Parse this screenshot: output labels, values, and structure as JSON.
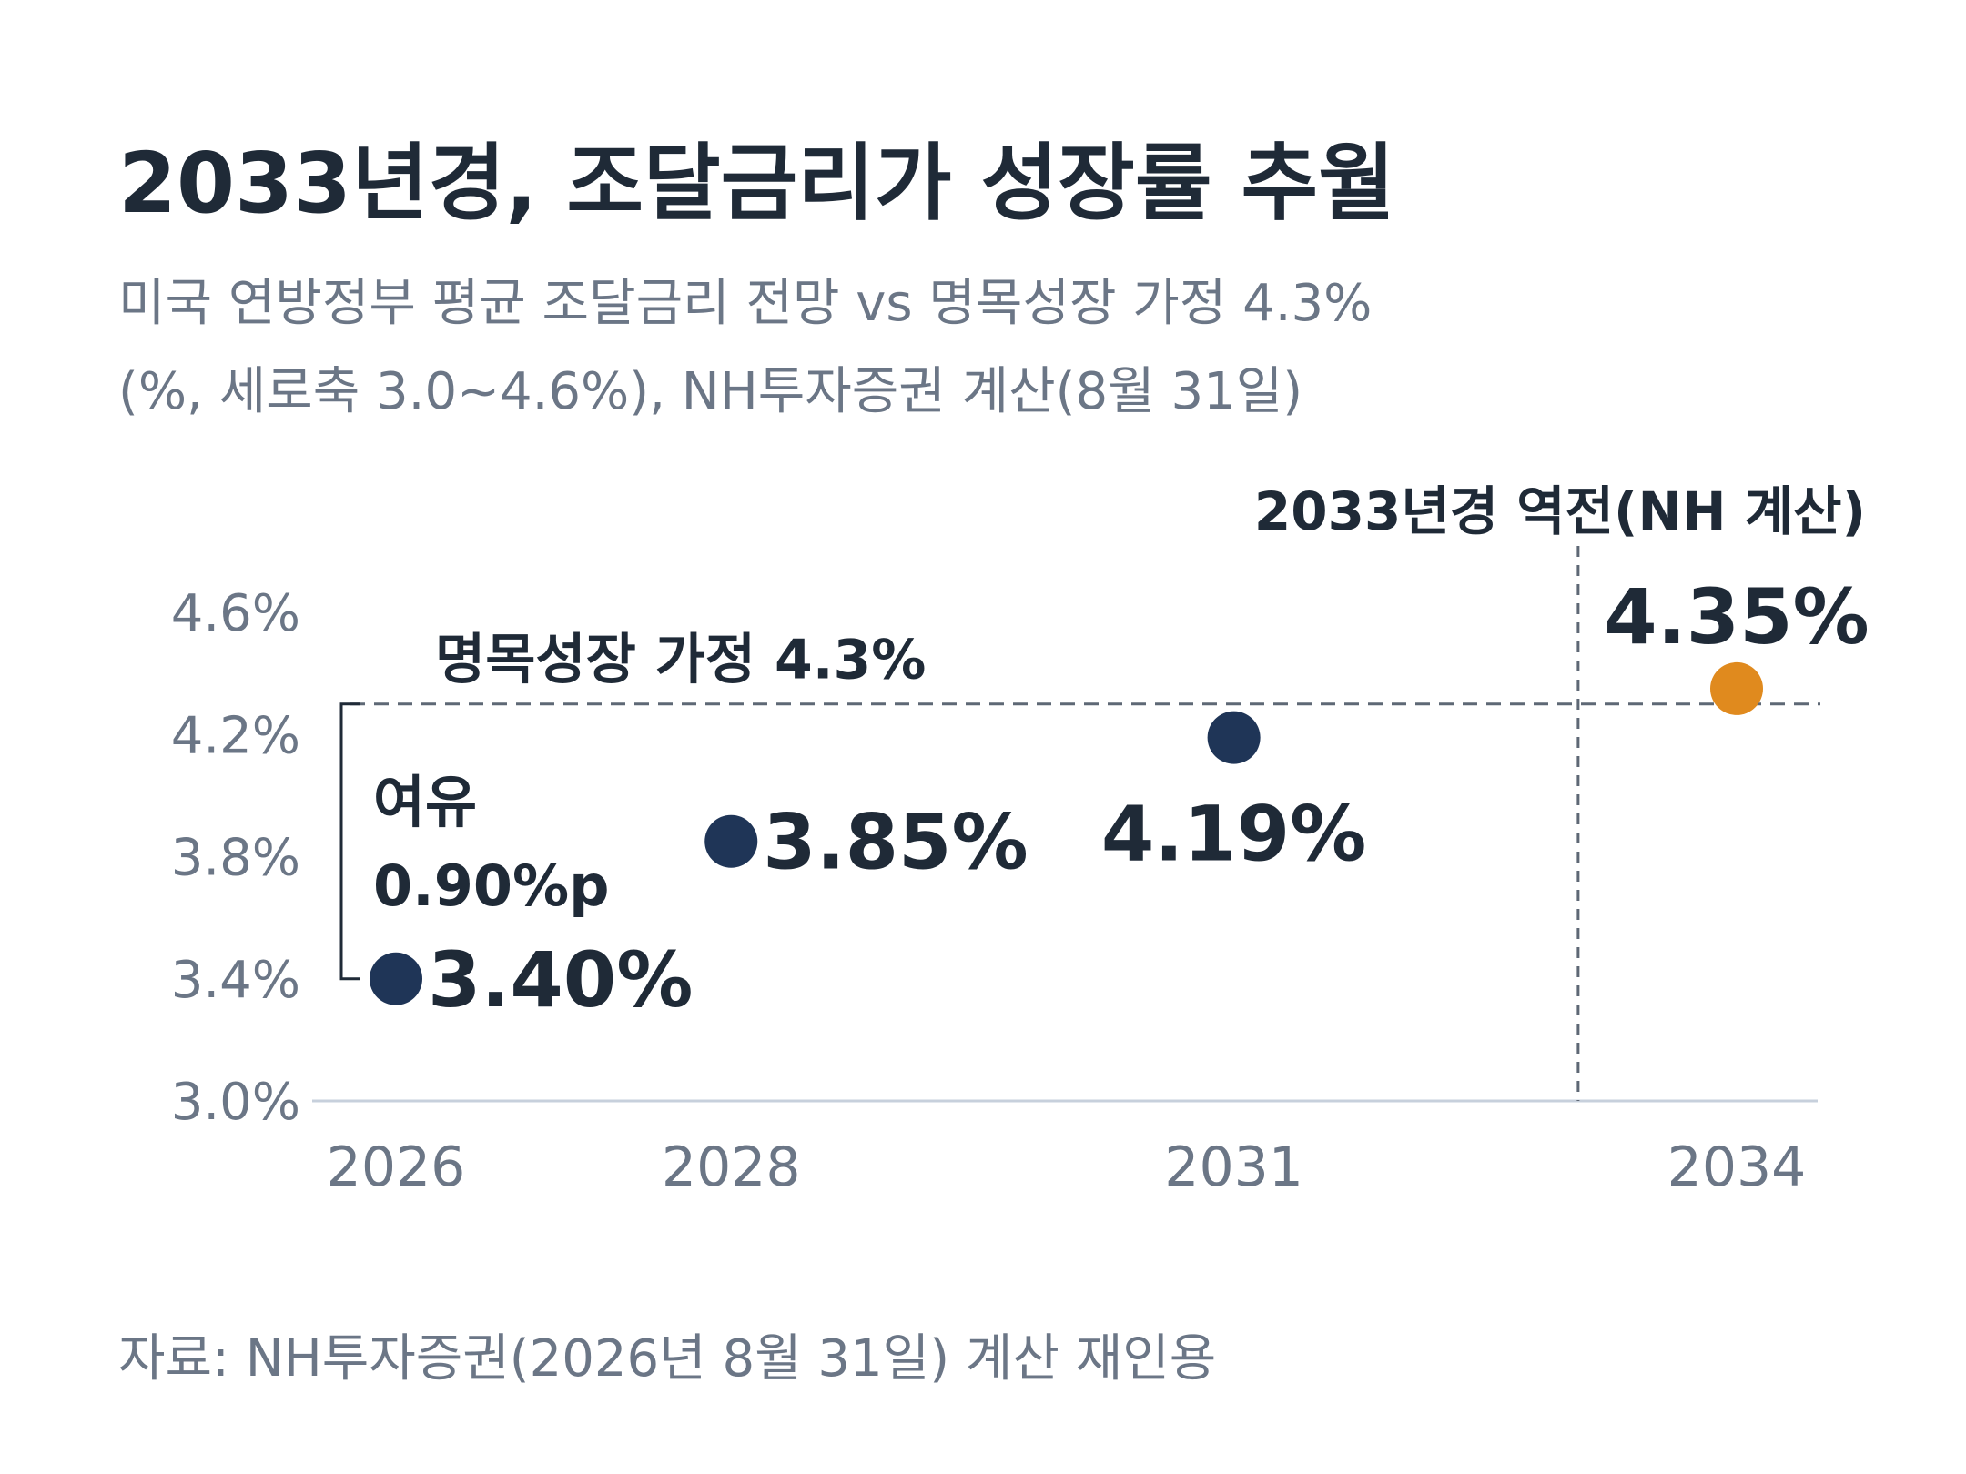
{
  "title": "2033년경, 조달금리가 성장률 추월",
  "subtitle_line1": "미국 연방정부 평균 조달금리 전망 vs 명목성장 가정 4.3%",
  "subtitle_line2": "(%, 세로축 3.0~4.6%), NH투자증권 계산(8월 31일)",
  "source": "자료: NH투자증권(2026년 8월 31일) 계산 재인용",
  "colors": {
    "navy": "#1f3557",
    "orange": "#e08a1e",
    "text_dark": "#1f2a37",
    "text_gray": "#6b7686",
    "ref_line": "#5e6875",
    "axis": "#c7d0dc"
  },
  "chart_data": {
    "type": "scatter",
    "x": [
      2026,
      2028,
      2031,
      2034
    ],
    "x_ticks": [
      "2026",
      "2028",
      "2031",
      "2034"
    ],
    "y_ticks": [
      "3.0%",
      "3.4%",
      "3.8%",
      "4.2%",
      "4.6%"
    ],
    "ylim": [
      3.0,
      4.6
    ],
    "values": [
      3.4,
      3.85,
      4.19,
      4.35
    ],
    "value_labels": [
      "3.40%",
      "3.85%",
      "4.19%",
      "4.35%"
    ],
    "reference_line": {
      "y": 4.3,
      "label": "명목성장 가정 4.3%"
    },
    "crossover": {
      "x": 2033,
      "label": "2033년경 역전(NH 계산)"
    },
    "margin_annotation": {
      "line1": "여유",
      "line2": "0.90%p"
    }
  }
}
